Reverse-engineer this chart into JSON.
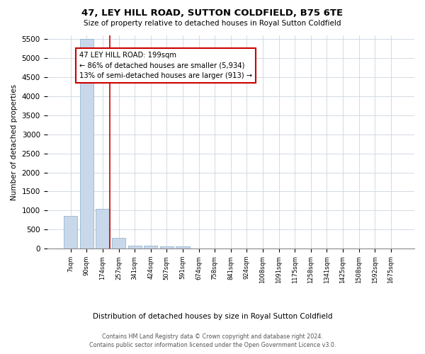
{
  "title": "47, LEY HILL ROAD, SUTTON COLDFIELD, B75 6TE",
  "subtitle": "Size of property relative to detached houses in Royal Sutton Coldfield",
  "xlabel": "Distribution of detached houses by size in Royal Sutton Coldfield",
  "ylabel": "Number of detached properties",
  "bin_labels": [
    "7sqm",
    "90sqm",
    "174sqm",
    "257sqm",
    "341sqm",
    "424sqm",
    "507sqm",
    "591sqm",
    "674sqm",
    "758sqm",
    "841sqm",
    "924sqm",
    "1008sqm",
    "1091sqm",
    "1175sqm",
    "1258sqm",
    "1341sqm",
    "1425sqm",
    "1508sqm",
    "1592sqm",
    "1675sqm"
  ],
  "bar_heights": [
    850,
    5500,
    1050,
    280,
    75,
    75,
    50,
    50,
    0,
    0,
    0,
    0,
    0,
    0,
    0,
    0,
    0,
    0,
    0,
    0,
    0
  ],
  "bar_color": "#c8d8ea",
  "bar_edge_color": "#88aac8",
  "red_line_bin_index": 2,
  "annotation_title": "47 LEY HILL ROAD: 199sqm",
  "annotation_line2": "← 86% of detached houses are smaller (5,934)",
  "annotation_line3": "13% of semi-detached houses are larger (913) →",
  "annotation_box_facecolor": "#ffffff",
  "annotation_box_edgecolor": "#cc0000",
  "red_line_color": "#cc0000",
  "ylim_max": 5600,
  "yticks": [
    0,
    500,
    1000,
    1500,
    2000,
    2500,
    3000,
    3500,
    4000,
    4500,
    5000,
    5500
  ],
  "footer_line1": "Contains HM Land Registry data © Crown copyright and database right 2024.",
  "footer_line2": "Contains public sector information licensed under the Open Government Licence v3.0.",
  "bg_color": "#ffffff",
  "grid_color": "#ccd6e0"
}
